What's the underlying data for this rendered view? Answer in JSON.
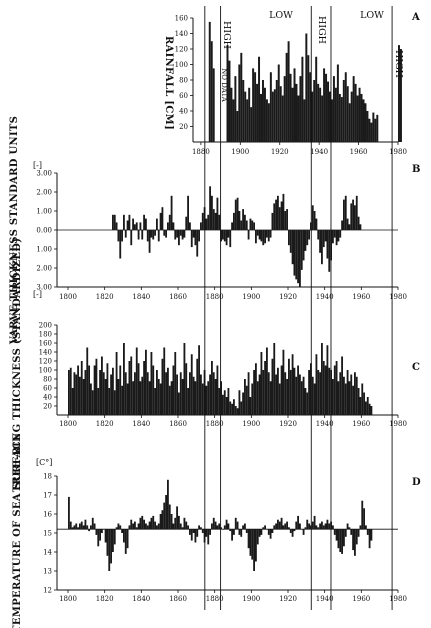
{
  "chart_data": [
    {
      "id": "A",
      "type": "bar",
      "panel_label": "A",
      "ylabel": "RAINFALL [CM]",
      "xlim": [
        1876,
        1980
      ],
      "ylim": [
        0,
        160
      ],
      "yticks": [
        "20",
        "40",
        "60",
        "80",
        "100",
        "120",
        "140",
        "160"
      ],
      "xticks": [
        "1880",
        "1900",
        "1920",
        "1940",
        "1960",
        "1980"
      ],
      "annotations": {
        "no_data": "NO DATA",
        "high1": "HIGH",
        "low1": "LOW",
        "high2": "HIGH",
        "low2": "LOW",
        "high3": "HIGH"
      },
      "years_start": 1878,
      "values": [
        0,
        0,
        0,
        0,
        0,
        0,
        155,
        130,
        95,
        0,
        0,
        0,
        0,
        0,
        0,
        125,
        105,
        70,
        55,
        85,
        40,
        100,
        115,
        80,
        65,
        55,
        70,
        45,
        95,
        90,
        75,
        110,
        62,
        80,
        70,
        55,
        50,
        90,
        65,
        68,
        80,
        100,
        72,
        60,
        85,
        115,
        130,
        88,
        70,
        95,
        75,
        60,
        85,
        110,
        55,
        140,
        112,
        90,
        65,
        80,
        110,
        75,
        70,
        60,
        95,
        88,
        78,
        65,
        55,
        85,
        70,
        100,
        62,
        58,
        80,
        90,
        72,
        50,
        65,
        85,
        75,
        60,
        70,
        62,
        55,
        50,
        40,
        30,
        25,
        38,
        30,
        35,
        0,
        0,
        0,
        0,
        0,
        0,
        0,
        0,
        0,
        0,
        125,
        120
      ]
    },
    {
      "id": "B",
      "type": "bar",
      "panel_label": "B",
      "ylabel": "VARVE THICKNESS STANDARD UNITS",
      "unit_top": "[-]",
      "unit_bottom": "[-]",
      "xlim": [
        1794,
        1980
      ],
      "ylim": [
        -3,
        3
      ],
      "yticks_upper": [
        "3.00",
        "2.00",
        "1.00",
        "0.00"
      ],
      "yticks_lower": [
        "1.00",
        "2.00",
        "3.00"
      ],
      "xticks": [
        "1800",
        "1820",
        "1840",
        "1860",
        "1880",
        "1900",
        "1920",
        "1940",
        "1960",
        "1980"
      ],
      "years_start": 1824,
      "values": [
        0.8,
        0.8,
        0.4,
        -0.6,
        -1.5,
        -0.6,
        0.8,
        -0.4,
        0.5,
        0.8,
        -0.8,
        0.6,
        0.3,
        0.4,
        -0.5,
        0.4,
        -0.5,
        0.8,
        0.6,
        -0.6,
        -1.2,
        -0.4,
        -0.5,
        -0.3,
        0.6,
        -0.6,
        0.9,
        1.2,
        -0.3,
        -0.4,
        0.4,
        0.8,
        1.8,
        0.4,
        -0.5,
        -0.4,
        -0.8,
        -0.3,
        -0.5,
        -0.4,
        0.7,
        1.8,
        0.4,
        -0.9,
        -0.4,
        -0.8,
        -1.4,
        -0.6,
        0.4,
        0.9,
        1.2,
        0.6,
        0.8,
        2.3,
        1.8,
        1.1,
        0.9,
        1.7,
        0.8,
        -0.6,
        -0.5,
        -0.6,
        -0.8,
        -0.4,
        -0.9,
        0.4,
        0.9,
        1.6,
        1.7,
        1.0,
        0.5,
        1.1,
        0.8,
        0.5,
        -0.5,
        0.6,
        0.5,
        0.4,
        -0.7,
        -0.3,
        -0.5,
        -0.6,
        -0.8,
        -0.7,
        -0.4,
        -0.6,
        -0.4,
        0.9,
        1.4,
        1.6,
        1.8,
        1.2,
        1.5,
        1.9,
        1.0,
        1.1,
        -0.8,
        -1.2,
        -1.8,
        -2.4,
        -2.6,
        -2.8,
        -3.0,
        -2.1,
        -1.6,
        -1.1,
        -0.8,
        -0.5,
        0.4,
        1.3,
        1.0,
        0.6,
        -0.5,
        -1.2,
        -1.8,
        -0.9,
        -0.6,
        -1.5,
        -2.2,
        -1.6,
        -0.7,
        -0.4,
        -0.8,
        -0.6,
        -0.4,
        0.5,
        1.6,
        1.8,
        0.6,
        0.3,
        1.4,
        1.6,
        1.3,
        1.8,
        0.7,
        0.3
      ]
    },
    {
      "id": "C",
      "type": "bar",
      "panel_label": "C",
      "ylabel": "TREE-RING THICKNESS (STANDARDIZED)",
      "xlim": [
        1794,
        1980
      ],
      "ylim": [
        0,
        200
      ],
      "yticks": [
        "20",
        "40",
        "60",
        "80",
        "100",
        "120",
        "140",
        "160",
        "180",
        "200"
      ],
      "xticks": [
        "1800",
        "1820",
        "1840",
        "1860",
        "1880",
        "1900",
        "1920",
        "1940",
        "1960",
        "1980"
      ],
      "years_start": 1800,
      "values": [
        100,
        105,
        60,
        95,
        90,
        110,
        85,
        120,
        80,
        100,
        150,
        110,
        70,
        55,
        110,
        125,
        60,
        100,
        130,
        95,
        80,
        115,
        60,
        90,
        105,
        55,
        140,
        80,
        110,
        65,
        160,
        95,
        70,
        120,
        130,
        75,
        95,
        150,
        115,
        75,
        85,
        120,
        145,
        95,
        75,
        140,
        110,
        60,
        100,
        80,
        70,
        125,
        150,
        95,
        105,
        65,
        75,
        110,
        140,
        90,
        50,
        95,
        80,
        160,
        115,
        60,
        95,
        135,
        85,
        75,
        125,
        155,
        90,
        70,
        100,
        65,
        75,
        90,
        120,
        95,
        80,
        110,
        60,
        75,
        45,
        55,
        40,
        60,
        30,
        25,
        35,
        20,
        15,
        55,
        30,
        50,
        80,
        65,
        95,
        40,
        70,
        100,
        115,
        75,
        90,
        140,
        100,
        120,
        150,
        95,
        75,
        125,
        160,
        90,
        105,
        70,
        110,
        145,
        95,
        80,
        125,
        100,
        135,
        105,
        85,
        110,
        90,
        75,
        85,
        60,
        50,
        100,
        115,
        85,
        70,
        135,
        100,
        95,
        160,
        120,
        110,
        155,
        105,
        100,
        80,
        110,
        120,
        75,
        95,
        130,
        85,
        70,
        100,
        75,
        90,
        65,
        95,
        85,
        60,
        40,
        70,
        50,
        30,
        40,
        25,
        20
      ]
    },
    {
      "id": "D",
      "type": "bar",
      "panel_label": "D",
      "unit": "[C°]",
      "ylabel": "TEMPERATURE OF SEA SURFACE",
      "xlim": [
        1794,
        1980
      ],
      "ylim": [
        12,
        18
      ],
      "baseline": 15.2,
      "yticks": [
        "12",
        "13",
        "14",
        "15",
        "16",
        "17",
        "18"
      ],
      "xticks": [
        "1800",
        "1820",
        "1840",
        "1860",
        "1880",
        "1900",
        "1920",
        "1940",
        "1960",
        "1980"
      ],
      "years_start": 1800,
      "values": [
        16.9,
        15.6,
        15.3,
        15.4,
        15.5,
        15.3,
        15.5,
        15.6,
        15.4,
        15.7,
        15.4,
        15.1,
        15.4,
        15.8,
        15.5,
        14.9,
        14.3,
        14.6,
        15.0,
        15.2,
        14.5,
        13.8,
        13.0,
        13.4,
        14.0,
        14.4,
        15.3,
        15.5,
        15.4,
        15.0,
        14.5,
        13.9,
        14.2,
        15.4,
        15.7,
        15.5,
        15.6,
        15.3,
        15.5,
        15.8,
        15.9,
        15.7,
        15.5,
        15.4,
        15.6,
        15.8,
        15.9,
        15.6,
        15.4,
        15.5,
        16.0,
        16.2,
        16.6,
        17.0,
        17.8,
        16.5,
        16.0,
        15.5,
        15.8,
        16.4,
        15.9,
        15.5,
        15.3,
        15.8,
        15.6,
        15.4,
        14.9,
        14.6,
        15.0,
        14.5,
        14.8,
        15.4,
        15.3,
        15.0,
        14.5,
        14.8,
        14.4,
        14.9,
        15.5,
        15.8,
        15.6,
        15.4,
        15.5,
        15.3,
        15.2,
        15.4,
        15.7,
        15.5,
        15.1,
        14.6,
        14.9,
        15.8,
        15.6,
        14.9,
        14.8,
        15.4,
        15.5,
        15.0,
        14.2,
        13.8,
        13.6,
        13.0,
        13.5,
        14.4,
        14.8,
        14.9,
        15.3,
        15.4,
        15.2,
        14.9,
        14.7,
        15.0,
        15.4,
        15.5,
        15.7,
        15.6,
        15.8,
        15.4,
        15.5,
        15.6,
        15.3,
        15.0,
        14.8,
        15.1,
        15.6,
        15.9,
        15.5,
        15.2,
        14.9,
        15.3,
        15.7,
        15.5,
        15.4,
        15.6,
        15.9,
        15.4,
        15.3,
        15.5,
        15.6,
        15.4,
        15.5,
        15.7,
        15.5,
        15.6,
        15.4,
        14.9,
        14.6,
        14.2,
        14.0,
        13.9,
        14.3,
        14.8,
        15.5,
        15.3,
        14.9,
        14.1,
        13.8,
        14.4,
        14.8,
        15.4,
        16.7,
        16.3,
        15.4,
        14.9,
        14.2,
        14.6
      ]
    }
  ]
}
